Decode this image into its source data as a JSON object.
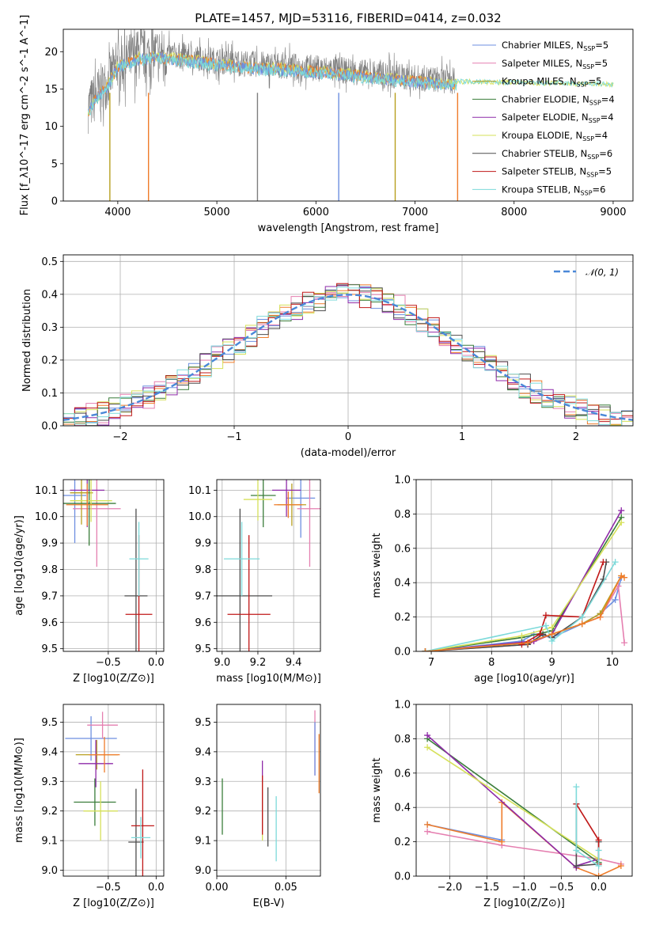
{
  "title": "PLATE=1457, MJD=53116, FIBERID=0414, z=0.032",
  "colors": {
    "Chabrier MILES": "#6d8fe0",
    "Salpeter MILES": "#e57fb0",
    "Kroupa MILES": "#b8a020",
    "Chabrier ELODIE": "#3a7d3a",
    "Salpeter ELODIE": "#8e2aa8",
    "Kroupa ELODIE": "#d6e15a",
    "Chabrier STELIB": "#4d4d4d",
    "Salpeter STELIB": "#c01818",
    "Kroupa STELIB": "#7ddada",
    "orange": "#ef7c2a",
    "gray_data": "#7f7f7f",
    "normal_curve": "#4a88d8"
  },
  "chart_data": [
    {
      "type": "line",
      "xlabel": "wavelength [Angstrom, rest frame]",
      "ylabel": "Flux [f_λ10^-17 erg cm^-2 s^-1 A^-1]",
      "xlim": [
        3450,
        9200
      ],
      "ylim": [
        0,
        23
      ],
      "xticks": [
        "4000",
        "5000",
        "6000",
        "7000",
        "8000",
        "9000"
      ],
      "yticks": [
        "0",
        "5",
        "10",
        "15",
        "20"
      ],
      "legend_position": "top-right",
      "series": [
        {
          "name": "Chabrier MILES, N_SSP=5"
        },
        {
          "name": "Salpeter MILES, N_SSP=5"
        },
        {
          "name": "Kroupa MILES, N_SSP=5"
        },
        {
          "name": "Chabrier ELODIE, N_SSP=4"
        },
        {
          "name": "Salpeter ELODIE, N_SSP=4"
        },
        {
          "name": "Kroupa ELODIE, N_SSP=4"
        },
        {
          "name": "Chabrier STELIB, N_SSP=6"
        },
        {
          "name": "Salpeter STELIB, N_SSP=5"
        },
        {
          "name": "Kroupa STELIB, N_SSP=6"
        }
      ],
      "continuum": {
        "x": [
          3700,
          3800,
          3900,
          4000,
          4200,
          4400,
          4600,
          4800,
          5000,
          5200,
          5400,
          5600,
          5800,
          6000,
          6200,
          6400,
          6600,
          6800,
          7000,
          7200,
          7400
        ],
        "y": [
          12.5,
          14.5,
          16.0,
          18.5,
          19.5,
          19.8,
          19.5,
          19.2,
          18.8,
          18.5,
          18.3,
          18.2,
          18.0,
          17.8,
          17.6,
          17.3,
          17.0,
          16.8,
          16.5,
          16.3,
          16.1
        ]
      },
      "model_only": {
        "x": [
          7400,
          7600,
          7800,
          8000,
          8200,
          8400,
          8600,
          8800,
          9000
        ],
        "y": [
          16.0,
          16.0,
          15.9,
          15.9,
          15.8,
          15.8,
          15.7,
          15.7,
          15.6
        ]
      },
      "drop_lines": [
        {
          "x": 3920,
          "color": "Kroupa MILES"
        },
        {
          "x": 4310,
          "color": "orange"
        },
        {
          "x": 5410,
          "color": "gray_data"
        },
        {
          "x": 6230,
          "color": "Chabrier MILES"
        },
        {
          "x": 6800,
          "color": "Kroupa MILES"
        },
        {
          "x": 7430,
          "color": "orange"
        }
      ]
    },
    {
      "type": "histogram",
      "xlabel": "(data-model)/error",
      "ylabel": "Normed distribution",
      "xlim": [
        -2.5,
        2.5
      ],
      "ylim": [
        0,
        0.52
      ],
      "xticks": [
        "−2",
        "−1",
        "0",
        "1",
        "2"
      ],
      "yticks": [
        "0.0",
        "0.1",
        "0.2",
        "0.3",
        "0.4",
        "0.5"
      ],
      "legend": "𝒩(0, 1)",
      "bin_width": 0.1,
      "peak": 0.399
    },
    {
      "type": "scatter",
      "xlabel": "Z [log10(Z/Z⊙)]",
      "ylabel": "age [log10(age/yr)]",
      "xlim": [
        -0.97,
        0.08
      ],
      "ylim": [
        9.49,
        10.14
      ],
      "xticks": [
        "−0.5",
        "0.0"
      ],
      "yticks": [
        "9.5",
        "9.6",
        "9.7",
        "9.8",
        "9.9",
        "10.0",
        "10.1"
      ],
      "points": [
        {
          "s": "Chabrier MILES",
          "x": -0.85,
          "y": 10.08,
          "xe": 0.12,
          "ye": 0.18
        },
        {
          "s": "Salpeter MILES",
          "x": -0.62,
          "y": 10.03,
          "xe": 0.25,
          "ye": 0.22
        },
        {
          "s": "Kroupa MILES",
          "x": -0.78,
          "y": 10.09,
          "xe": 0.12,
          "ye": 0.12
        },
        {
          "s": "Chabrier ELODIE",
          "x": -0.7,
          "y": 10.05,
          "xe": 0.28,
          "ye": 0.16
        },
        {
          "s": "Salpeter ELODIE",
          "x": -0.72,
          "y": 10.1,
          "xe": 0.18,
          "ye": 0.14
        },
        {
          "s": "Kroupa ELODIE",
          "x": -0.68,
          "y": 10.06,
          "xe": 0.22,
          "ye": 0.08
        },
        {
          "s": "Chabrier STELIB",
          "x": -0.21,
          "y": 9.7,
          "xe": 0.12,
          "ye": 0.33
        },
        {
          "s": "Salpeter STELIB",
          "x": -0.18,
          "y": 9.63,
          "xe": 0.14,
          "ye": 0.3
        },
        {
          "s": "Kroupa STELIB",
          "x": -0.18,
          "y": 9.84,
          "xe": 0.1,
          "ye": 0.14
        },
        {
          "s": "orange",
          "x": -0.72,
          "y": 10.045,
          "xe": 0.22,
          "ye": 0.08
        }
      ]
    },
    {
      "type": "scatter",
      "xlabel": "mass [log10(M/M⊙)]",
      "ylabel": "",
      "xlim": [
        8.97,
        9.55
      ],
      "ylim": [
        9.49,
        10.14
      ],
      "xticks": [
        "9.0",
        "9.2",
        "9.4"
      ],
      "yticks": [
        "9.5",
        "9.6",
        "9.7",
        "9.8",
        "9.9",
        "10.0",
        "10.1"
      ],
      "points": [
        {
          "s": "Chabrier MILES",
          "x": 9.44,
          "y": 10.07,
          "xe": 0.08,
          "ye": 0.15
        },
        {
          "s": "Salpeter MILES",
          "x": 9.49,
          "y": 10.03,
          "xe": 0.07,
          "ye": 0.22
        },
        {
          "s": "Kroupa MILES",
          "x": 9.39,
          "y": 10.045,
          "xe": 0.08,
          "ye": 0.08
        },
        {
          "s": "Chabrier ELODIE",
          "x": 9.23,
          "y": 10.08,
          "xe": 0.07,
          "ye": 0.12
        },
        {
          "s": "Salpeter ELODIE",
          "x": 9.36,
          "y": 10.1,
          "xe": 0.08,
          "ye": 0.1
        },
        {
          "s": "Kroupa ELODIE",
          "x": 9.2,
          "y": 10.065,
          "xe": 0.08,
          "ye": 0.08
        },
        {
          "s": "Chabrier STELIB",
          "x": 9.1,
          "y": 9.7,
          "xe": 0.18,
          "ye": 0.33
        },
        {
          "s": "Salpeter STELIB",
          "x": 9.15,
          "y": 9.63,
          "xe": 0.12,
          "ye": 0.3
        },
        {
          "s": "Kroupa STELIB",
          "x": 9.11,
          "y": 9.84,
          "xe": 0.1,
          "ye": 0.14
        },
        {
          "s": "orange",
          "x": 9.37,
          "y": 10.045,
          "xe": 0.08,
          "ye": 0.05
        }
      ]
    },
    {
      "type": "line",
      "xlabel": "age [log10(age/yr)]",
      "ylabel": "mass weight",
      "xlim": [
        6.75,
        10.33
      ],
      "ylim": [
        0,
        1.0
      ],
      "xticks": [
        "7",
        "8",
        "9",
        "10"
      ],
      "yticks": [
        "0.0",
        "0.2",
        "0.4",
        "0.6",
        "0.8",
        "1.0"
      ],
      "series": [
        {
          "s": "Chabrier MILES",
          "x": [
            6.9,
            8.5,
            8.7,
            9.0,
            9.5,
            9.8,
            10.05,
            10.15
          ],
          "y": [
            0.0,
            0.06,
            0.1,
            0.08,
            0.16,
            0.22,
            0.3,
            0.43
          ]
        },
        {
          "s": "Salpeter MILES",
          "x": [
            6.9,
            8.6,
            9.0,
            9.5,
            9.8,
            10.1,
            10.2
          ],
          "y": [
            0.0,
            0.04,
            0.1,
            0.16,
            0.2,
            0.38,
            0.05
          ]
        },
        {
          "s": "Kroupa MILES",
          "x": [
            6.9,
            8.6,
            9.0,
            9.5,
            9.8,
            10.15
          ],
          "y": [
            0.0,
            0.05,
            0.1,
            0.16,
            0.22,
            0.44
          ]
        },
        {
          "s": "Chabrier ELODIE",
          "x": [
            6.9,
            8.5,
            9.0,
            10.15
          ],
          "y": [
            0.0,
            0.08,
            0.12,
            0.78
          ]
        },
        {
          "s": "Salpeter ELODIE",
          "x": [
            6.9,
            8.7,
            9.0,
            10.15
          ],
          "y": [
            0.0,
            0.06,
            0.1,
            0.82
          ]
        },
        {
          "s": "Kroupa ELODIE",
          "x": [
            6.9,
            8.5,
            9.0,
            10.15
          ],
          "y": [
            0.0,
            0.09,
            0.14,
            0.75
          ]
        },
        {
          "s": "Chabrier STELIB",
          "x": [
            6.9,
            8.6,
            8.85,
            9.0,
            9.5,
            9.85,
            9.9
          ],
          "y": [
            0.0,
            0.04,
            0.1,
            0.08,
            0.2,
            0.42,
            0.52
          ]
        },
        {
          "s": "Salpeter STELIB",
          "x": [
            8.5,
            8.8,
            8.9,
            9.5,
            9.85
          ],
          "y": [
            0.04,
            0.1,
            0.21,
            0.2,
            0.52
          ]
        },
        {
          "s": "Kroupa STELIB",
          "x": [
            6.9,
            8.9,
            9.0,
            9.5,
            10.05
          ],
          "y": [
            0.0,
            0.15,
            0.06,
            0.2,
            0.52
          ]
        },
        {
          "s": "orange",
          "x": [
            6.9,
            8.6,
            9.0,
            9.5,
            9.8,
            10.15,
            10.2
          ],
          "y": [
            0.0,
            0.05,
            0.1,
            0.16,
            0.2,
            0.44,
            0.43
          ]
        }
      ]
    },
    {
      "type": "scatter",
      "xlabel": "Z [log10(Z/Z⊙)]",
      "ylabel": "mass [log10(M/M⊙)]",
      "xlim": [
        -0.97,
        0.08
      ],
      "ylim": [
        8.98,
        9.56
      ],
      "xticks": [
        "−0.5",
        "0.0"
      ],
      "yticks": [
        "9.0",
        "9.1",
        "9.2",
        "9.3",
        "9.4",
        "9.5"
      ],
      "points": [
        {
          "s": "Chabrier MILES",
          "x": -0.68,
          "y": 9.445,
          "xe": 0.27,
          "ye": 0.075
        },
        {
          "s": "Salpeter MILES",
          "x": -0.56,
          "y": 9.49,
          "xe": 0.16,
          "ye": 0.045
        },
        {
          "s": "Kroupa MILES",
          "x": -0.62,
          "y": 9.39,
          "xe": 0.22,
          "ye": 0.05
        },
        {
          "s": "Chabrier ELODIE",
          "x": -0.64,
          "y": 9.23,
          "xe": 0.22,
          "ye": 0.08
        },
        {
          "s": "Salpeter ELODIE",
          "x": -0.63,
          "y": 9.36,
          "xe": 0.18,
          "ye": 0.08
        },
        {
          "s": "Kroupa ELODIE",
          "x": -0.58,
          "y": 9.2,
          "xe": 0.18,
          "ye": 0.1
        },
        {
          "s": "Chabrier STELIB",
          "x": -0.21,
          "y": 9.095,
          "xe": 0.08,
          "ye": 0.18
        },
        {
          "s": "Salpeter STELIB",
          "x": -0.14,
          "y": 9.15,
          "xe": 0.12,
          "ye": 0.19
        },
        {
          "s": "Kroupa STELIB",
          "x": -0.16,
          "y": 9.11,
          "xe": 0.1,
          "ye": 0.07
        },
        {
          "s": "orange",
          "x": -0.54,
          "y": 9.39,
          "xe": 0.16,
          "ye": 0.06
        }
      ]
    },
    {
      "type": "scatter",
      "xlabel": "E(B-V)",
      "ylabel": "",
      "xlim": [
        0,
        0.075
      ],
      "ylim": [
        8.98,
        9.56
      ],
      "xticks": [
        "0.00",
        "0.05"
      ],
      "yticks": [
        "9.0",
        "9.1",
        "9.2",
        "9.3",
        "9.4",
        "9.5"
      ],
      "points": [
        {
          "s": "Chabrier ELODIE",
          "x": 0.004,
          "y": 9.215,
          "ye": 0.095
        },
        {
          "s": "Salpeter ELODIE",
          "x": 0.033,
          "y": 9.25,
          "ye": 0.12
        },
        {
          "s": "Kroupa ELODIE",
          "x": 0.033,
          "y": 9.2,
          "ye": 0.1
        },
        {
          "s": "Chabrier STELIB",
          "x": 0.037,
          "y": 9.18,
          "ye": 0.1
        },
        {
          "s": "Salpeter STELIB",
          "x": 0.033,
          "y": 9.22,
          "ye": 0.1
        },
        {
          "s": "Kroupa STELIB",
          "x": 0.043,
          "y": 9.14,
          "ye": 0.11
        },
        {
          "s": "Salpeter MILES",
          "x": 0.071,
          "y": 9.43,
          "ye": 0.11
        },
        {
          "s": "Chabrier MILES",
          "x": 0.071,
          "y": 9.41,
          "ye": 0.09
        },
        {
          "s": "orange",
          "x": 0.074,
          "y": 9.36,
          "ye": 0.1
        }
      ]
    },
    {
      "type": "line",
      "xlabel": "Z [log10(Z/Z⊙)]",
      "ylabel": "mass weight",
      "xlim": [
        -2.45,
        0.45
      ],
      "ylim": [
        0,
        1.0
      ],
      "xticks": [
        "−2.0",
        "−1.5",
        "−1.0",
        "−0.5",
        "0.0"
      ],
      "yticks": [
        "0.0",
        "0.2",
        "0.4",
        "0.6",
        "0.8",
        "1.0"
      ],
      "series": [
        {
          "s": "Chabrier MILES",
          "x": [
            -2.3,
            -1.3
          ],
          "y": [
            0.3,
            0.21
          ]
        },
        {
          "s": "Salpeter MILES",
          "x": [
            -2.3,
            -1.3,
            0.0,
            0.3
          ],
          "y": [
            0.26,
            0.18,
            0.1,
            0.07
          ]
        },
        {
          "s": "orange",
          "x": [
            -2.3,
            -1.3,
            -1.3,
            -0.3,
            0.0,
            0.3
          ],
          "y": [
            0.3,
            0.2,
            0.43,
            0.05,
            0.0,
            0.06
          ]
        },
        {
          "s": "Chabrier ELODIE",
          "x": [
            -2.3,
            0.0
          ],
          "y": [
            0.8,
            0.08
          ]
        },
        {
          "s": "Salpeter ELODIE",
          "x": [
            -2.3,
            -0.3,
            -0.3,
            0.0
          ],
          "y": [
            0.82,
            0.05,
            0.06,
            0.1
          ]
        },
        {
          "s": "Kroupa ELODIE",
          "x": [
            -2.3,
            0.0
          ],
          "y": [
            0.75,
            0.1
          ]
        },
        {
          "s": "Chabrier STELIB",
          "x": [
            -0.3,
            -0.3,
            0.0,
            0.0
          ],
          "y": [
            0.42,
            0.06,
            0.07,
            0.2
          ]
        },
        {
          "s": "Salpeter STELIB",
          "x": [
            -0.3,
            0.0,
            0.0
          ],
          "y": [
            0.42,
            0.21,
            0.07
          ]
        },
        {
          "s": "Kroupa STELIB",
          "x": [
            -0.3,
            -0.3,
            0.0,
            0.0
          ],
          "y": [
            0.52,
            0.15,
            0.06,
            0.15
          ]
        }
      ]
    }
  ]
}
